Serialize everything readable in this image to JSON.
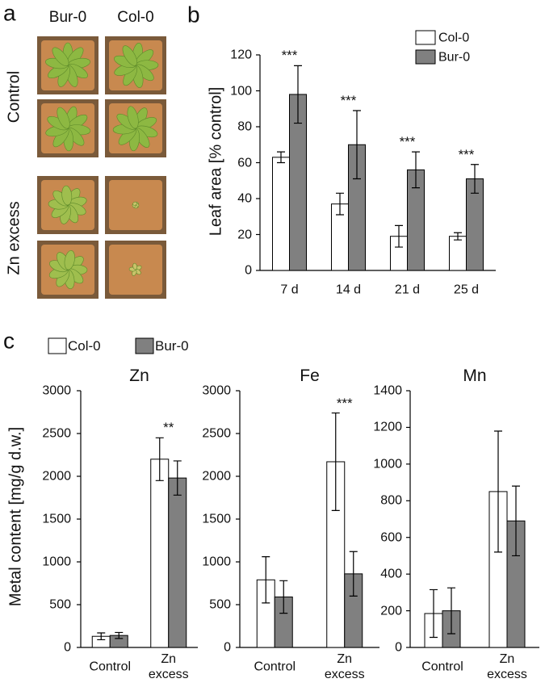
{
  "panel_labels": [
    "a",
    "b",
    "c"
  ],
  "photos": {
    "columns": [
      "Bur-0",
      "Col-0"
    ],
    "rows": [
      "Control",
      "Zn excess"
    ]
  },
  "chart_data": [
    {
      "type": "bar",
      "ylabel": "Leaf area [% control]",
      "categories": [
        "7 d",
        "14 d",
        "21 d",
        "25 d"
      ],
      "series": [
        {
          "name": "Col-0",
          "color": "#ffffff",
          "values": [
            63,
            37,
            19,
            19
          ],
          "errors": [
            3,
            6,
            6,
            2
          ]
        },
        {
          "name": "Bur-0",
          "color": "#808080",
          "values": [
            98,
            70,
            56,
            51
          ],
          "errors": [
            16,
            19,
            10,
            8
          ]
        }
      ],
      "annotations": [
        "***",
        "***",
        "***",
        "***"
      ],
      "ylim": [
        0,
        120
      ],
      "yticks": [
        0,
        20,
        40,
        60,
        80,
        100,
        120
      ]
    },
    {
      "type": "bar",
      "title": "Zn",
      "ylabel": "Metal content [mg/g d.w.]",
      "categories": [
        "Control",
        "Zn excess"
      ],
      "series": [
        {
          "name": "Col-0",
          "color": "#ffffff",
          "values": [
            130,
            2200
          ],
          "errors": [
            40,
            250
          ]
        },
        {
          "name": "Bur-0",
          "color": "#808080",
          "values": [
            140,
            1980
          ],
          "errors": [
            35,
            200
          ]
        }
      ],
      "annotations": [
        null,
        "**"
      ],
      "ylim": [
        0,
        3000
      ],
      "yticks": [
        0,
        500,
        1000,
        1500,
        2000,
        2500,
        3000
      ]
    },
    {
      "type": "bar",
      "title": "Fe",
      "categories": [
        "Control",
        "Zn excess"
      ],
      "series": [
        {
          "name": "Col-0",
          "color": "#ffffff",
          "values": [
            790,
            2170
          ],
          "errors": [
            270,
            570
          ]
        },
        {
          "name": "Bur-0",
          "color": "#808080",
          "values": [
            590,
            860
          ],
          "errors": [
            190,
            260
          ]
        }
      ],
      "annotations": [
        null,
        "***"
      ],
      "ylim": [
        0,
        3000
      ],
      "yticks": [
        0,
        500,
        1000,
        1500,
        2000,
        2500,
        3000
      ]
    },
    {
      "type": "bar",
      "title": "Mn",
      "categories": [
        "Control",
        "Zn excess"
      ],
      "series": [
        {
          "name": "Col-0",
          "color": "#ffffff",
          "values": [
            185,
            850
          ],
          "errors": [
            130,
            330
          ]
        },
        {
          "name": "Bur-0",
          "color": "#808080",
          "values": [
            200,
            690
          ],
          "errors": [
            125,
            190
          ]
        }
      ],
      "annotations": [
        null,
        null
      ],
      "ylim": [
        0,
        1400
      ],
      "yticks": [
        0,
        200,
        400,
        600,
        800,
        1000,
        1200,
        1400
      ]
    }
  ]
}
